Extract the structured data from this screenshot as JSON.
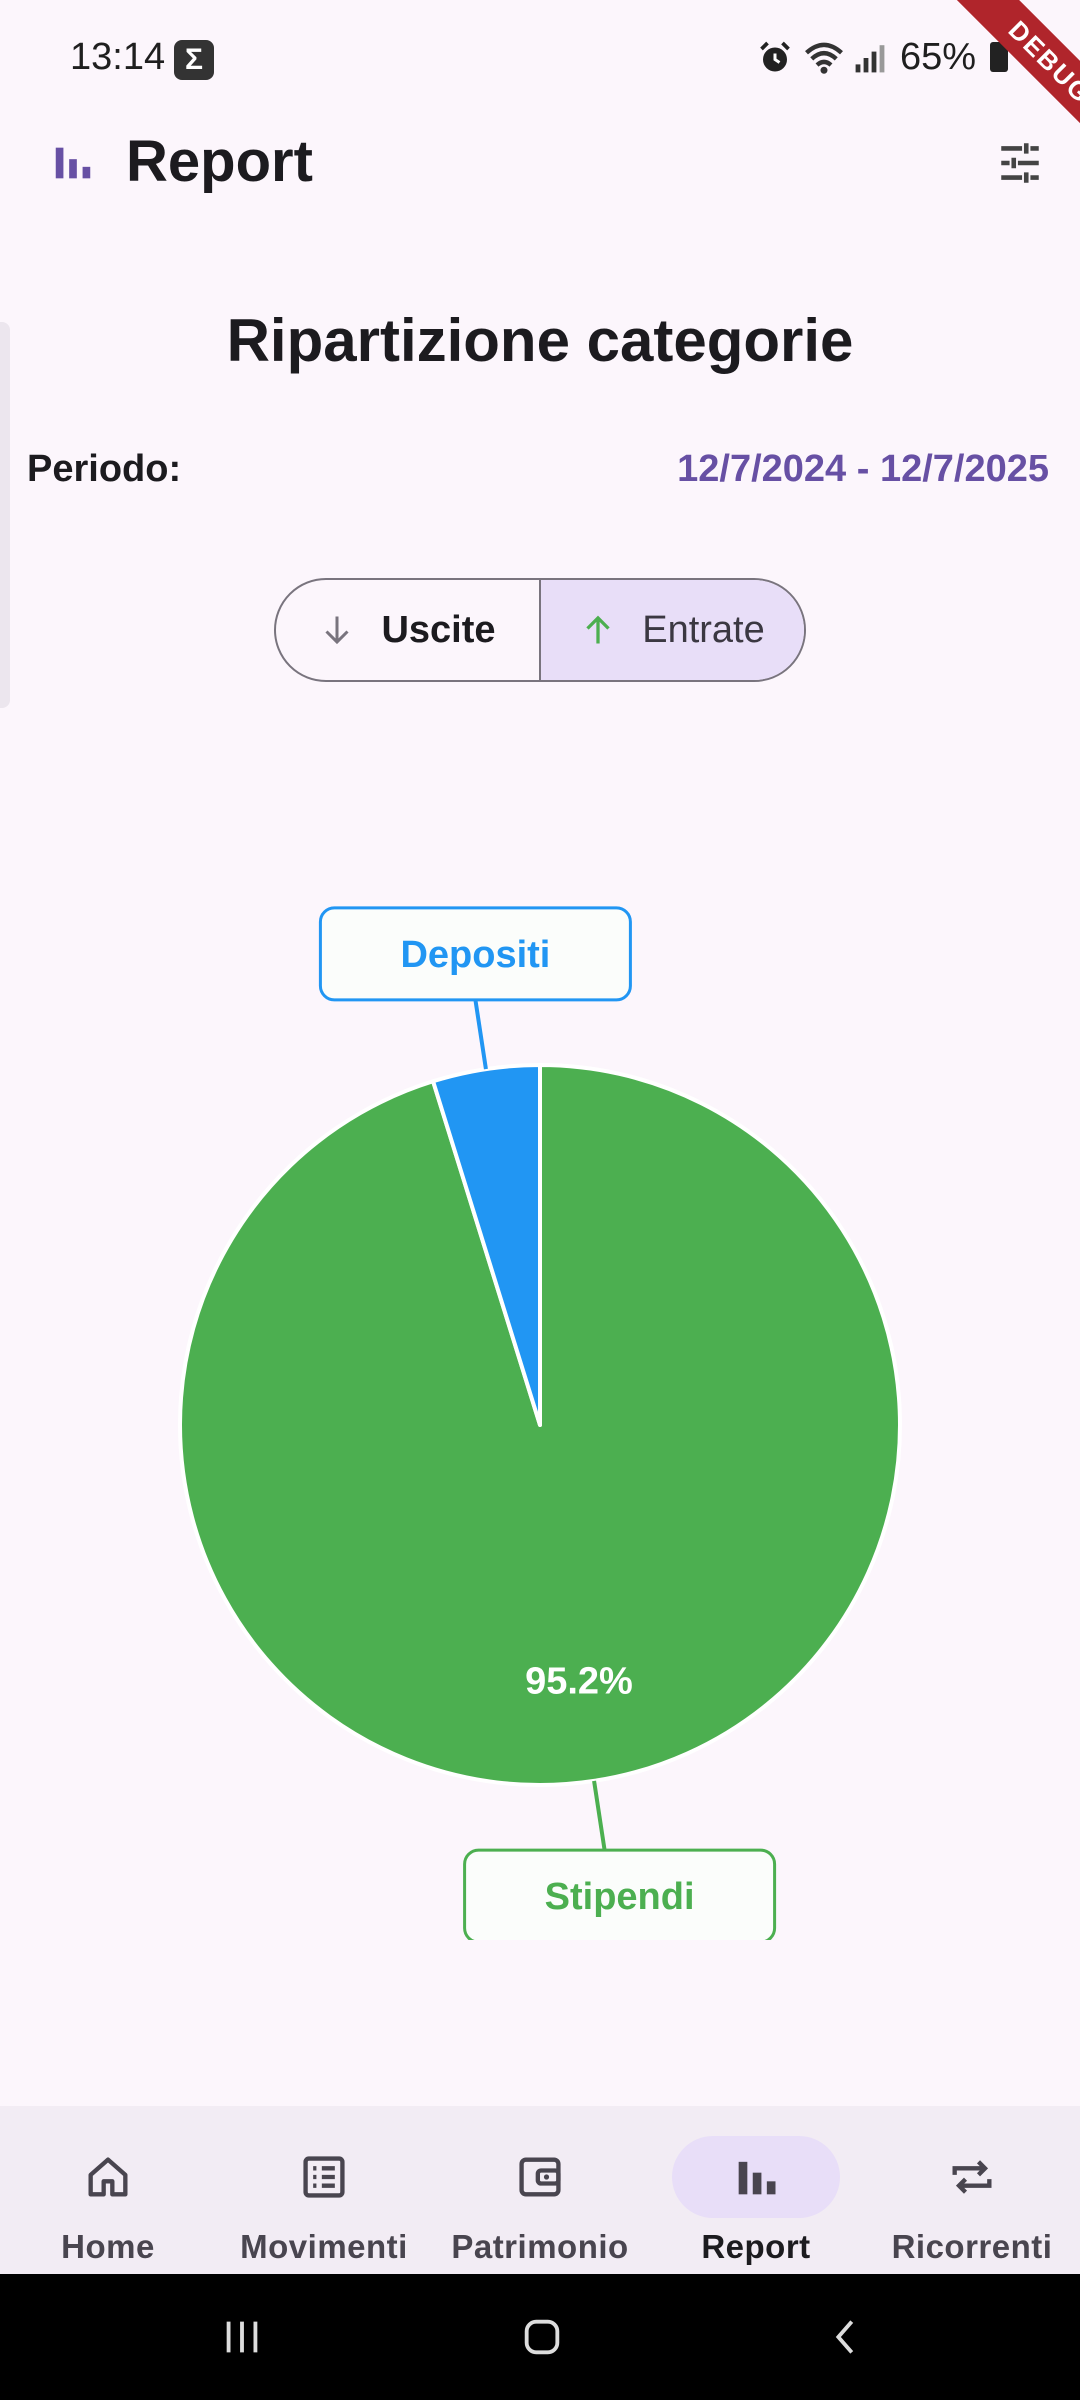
{
  "status_bar": {
    "time": "13:14",
    "battery": "65%",
    "debug": "DEBUG"
  },
  "app_bar": {
    "title": "Report"
  },
  "report": {
    "section_title": "Ripartizione categorie",
    "period_label": "Periodo:",
    "period_value": "12/7/2024 - 12/7/2025",
    "segments": [
      {
        "label": "Uscite",
        "selected": false
      },
      {
        "label": "Entrate",
        "selected": true
      }
    ]
  },
  "chart_data": {
    "type": "pie",
    "slices": [
      {
        "label": "Stipendi",
        "value": 95.2,
        "color": "#4CAF50",
        "value_label": "95.2%"
      },
      {
        "label": "Depositi",
        "value": 4.8,
        "color": "#2196F3"
      }
    ]
  },
  "bottom_nav": {
    "items": [
      {
        "label": "Home",
        "icon": "home-icon",
        "active": false
      },
      {
        "label": "Movimenti",
        "icon": "list-icon",
        "active": false
      },
      {
        "label": "Patrimonio",
        "icon": "wallet-icon",
        "active": false
      },
      {
        "label": "Report",
        "icon": "bar-chart-icon",
        "active": true
      },
      {
        "label": "Ricorrenti",
        "icon": "repeat-icon",
        "active": false
      }
    ]
  }
}
